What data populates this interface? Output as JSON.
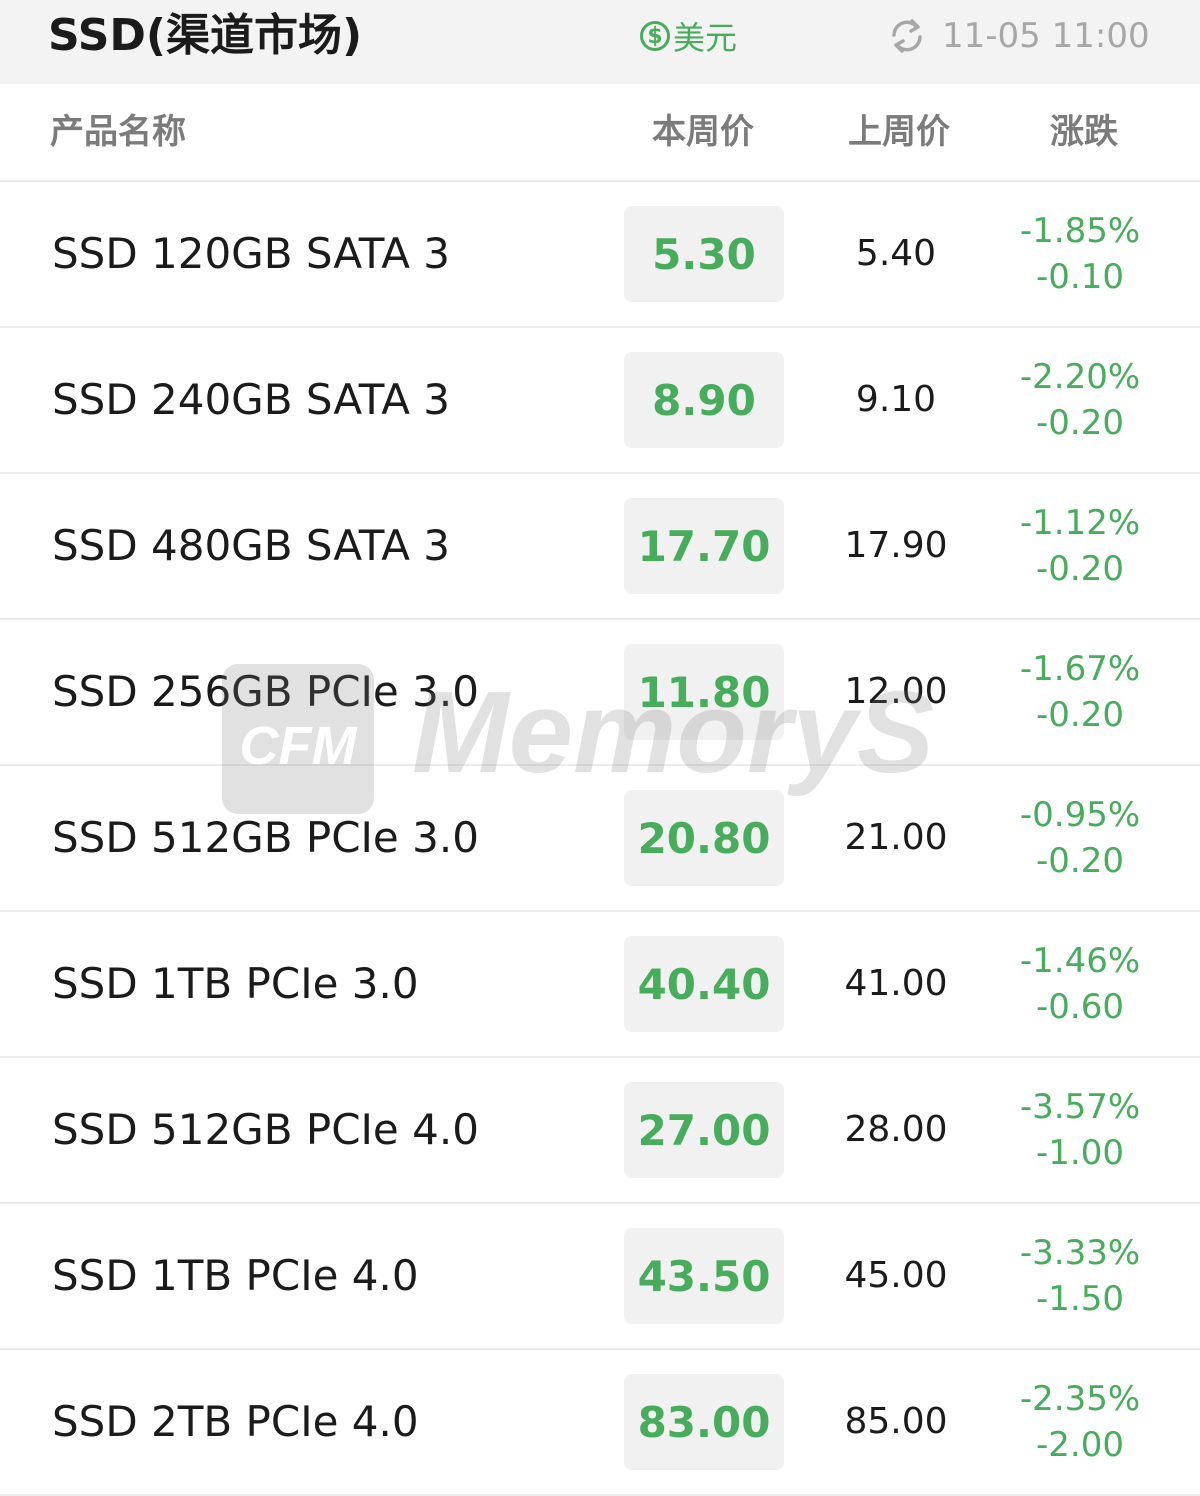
{
  "header": {
    "title": "SSD(渠道市场)",
    "currency_label": "美元",
    "currency_icon": "dollar-circle-icon",
    "timestamp": "11-05 11:00",
    "refresh_icon": "refresh-icon"
  },
  "columns": {
    "product": "产品名称",
    "this_week": "本周价",
    "last_week": "上周价",
    "change": "涨跌"
  },
  "rows": [
    {
      "name": "SSD 120GB SATA 3",
      "price": "5.30",
      "last": "5.40",
      "pct": "-1.85%",
      "abs": "-0.10"
    },
    {
      "name": "SSD 240GB SATA 3",
      "price": "8.90",
      "last": "9.10",
      "pct": "-2.20%",
      "abs": "-0.20"
    },
    {
      "name": "SSD 480GB SATA 3",
      "price": "17.70",
      "last": "17.90",
      "pct": "-1.12%",
      "abs": "-0.20"
    },
    {
      "name": "SSD 256GB PCIe 3.0",
      "price": "11.80",
      "last": "12.00",
      "pct": "-1.67%",
      "abs": "-0.20"
    },
    {
      "name": "SSD 512GB PCIe 3.0",
      "price": "20.80",
      "last": "21.00",
      "pct": "-0.95%",
      "abs": "-0.20"
    },
    {
      "name": "SSD 1TB PCIe 3.0",
      "price": "40.40",
      "last": "41.00",
      "pct": "-1.46%",
      "abs": "-0.60"
    },
    {
      "name": "SSD 512GB PCIe 4.0",
      "price": "27.00",
      "last": "28.00",
      "pct": "-3.57%",
      "abs": "-1.00"
    },
    {
      "name": "SSD 1TB PCIe 4.0",
      "price": "43.50",
      "last": "45.00",
      "pct": "-3.33%",
      "abs": "-1.50"
    },
    {
      "name": "SSD 2TB PCIe 4.0",
      "price": "83.00",
      "last": "85.00",
      "pct": "-2.35%",
      "abs": "-2.00"
    }
  ],
  "watermark": {
    "logo_text": "CFM",
    "brand_text": "MemoryS"
  },
  "colors": {
    "accent_green": "#47ad5c",
    "price_box_bg": "#f1f1f1",
    "topbar_bg": "#f3f3f3",
    "muted_text": "#a7a7a7"
  }
}
